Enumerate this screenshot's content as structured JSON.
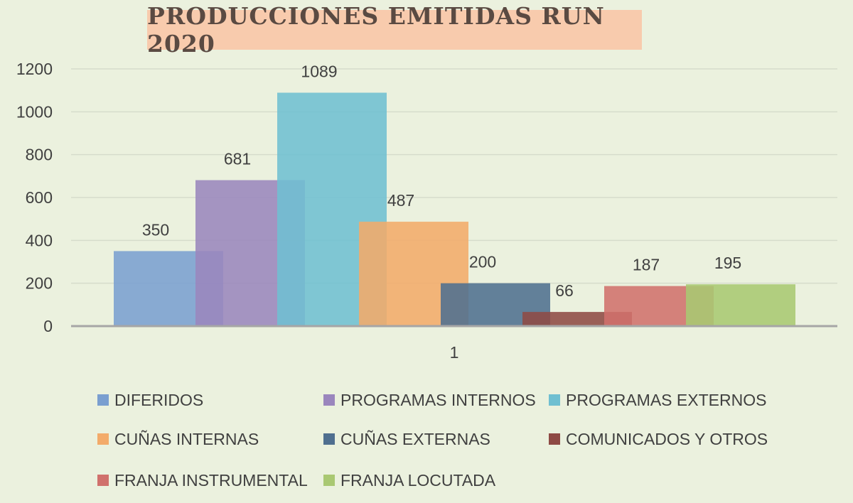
{
  "chart_data": {
    "type": "bar",
    "title": "PRODUCCIONES EMITIDAS RUN 2020",
    "xlabel": "",
    "ylabel": "",
    "categories": [
      "1"
    ],
    "ylim": [
      0,
      1200
    ],
    "yticks": [
      0,
      200,
      400,
      600,
      800,
      1000,
      1200
    ],
    "grid": true,
    "legend_position": "bottom",
    "series": [
      {
        "name": "DIFERIDOS",
        "values": [
          350
        ],
        "color": "#7a9fd0"
      },
      {
        "name": "PROGRAMAS INTERNOS",
        "values": [
          681
        ],
        "color": "#9a86bd"
      },
      {
        "name": "PROGRAMAS EXTERNOS",
        "values": [
          1089
        ],
        "color": "#6fbfd1"
      },
      {
        "name": "CUÑAS INTERNAS",
        "values": [
          487
        ],
        "color": "#f3ab6a"
      },
      {
        "name": "CUÑAS EXTERNAS",
        "values": [
          200
        ],
        "color": "#4f6f8f"
      },
      {
        "name": "COMUNICADOS Y OTROS",
        "values": [
          66
        ],
        "color": "#8e4a44"
      },
      {
        "name": "FRANJA INSTRUMENTAL",
        "values": [
          187
        ],
        "color": "#d0716c"
      },
      {
        "name": "FRANJA LOCUTADA",
        "values": [
          195
        ],
        "color": "#a9c872"
      }
    ]
  }
}
